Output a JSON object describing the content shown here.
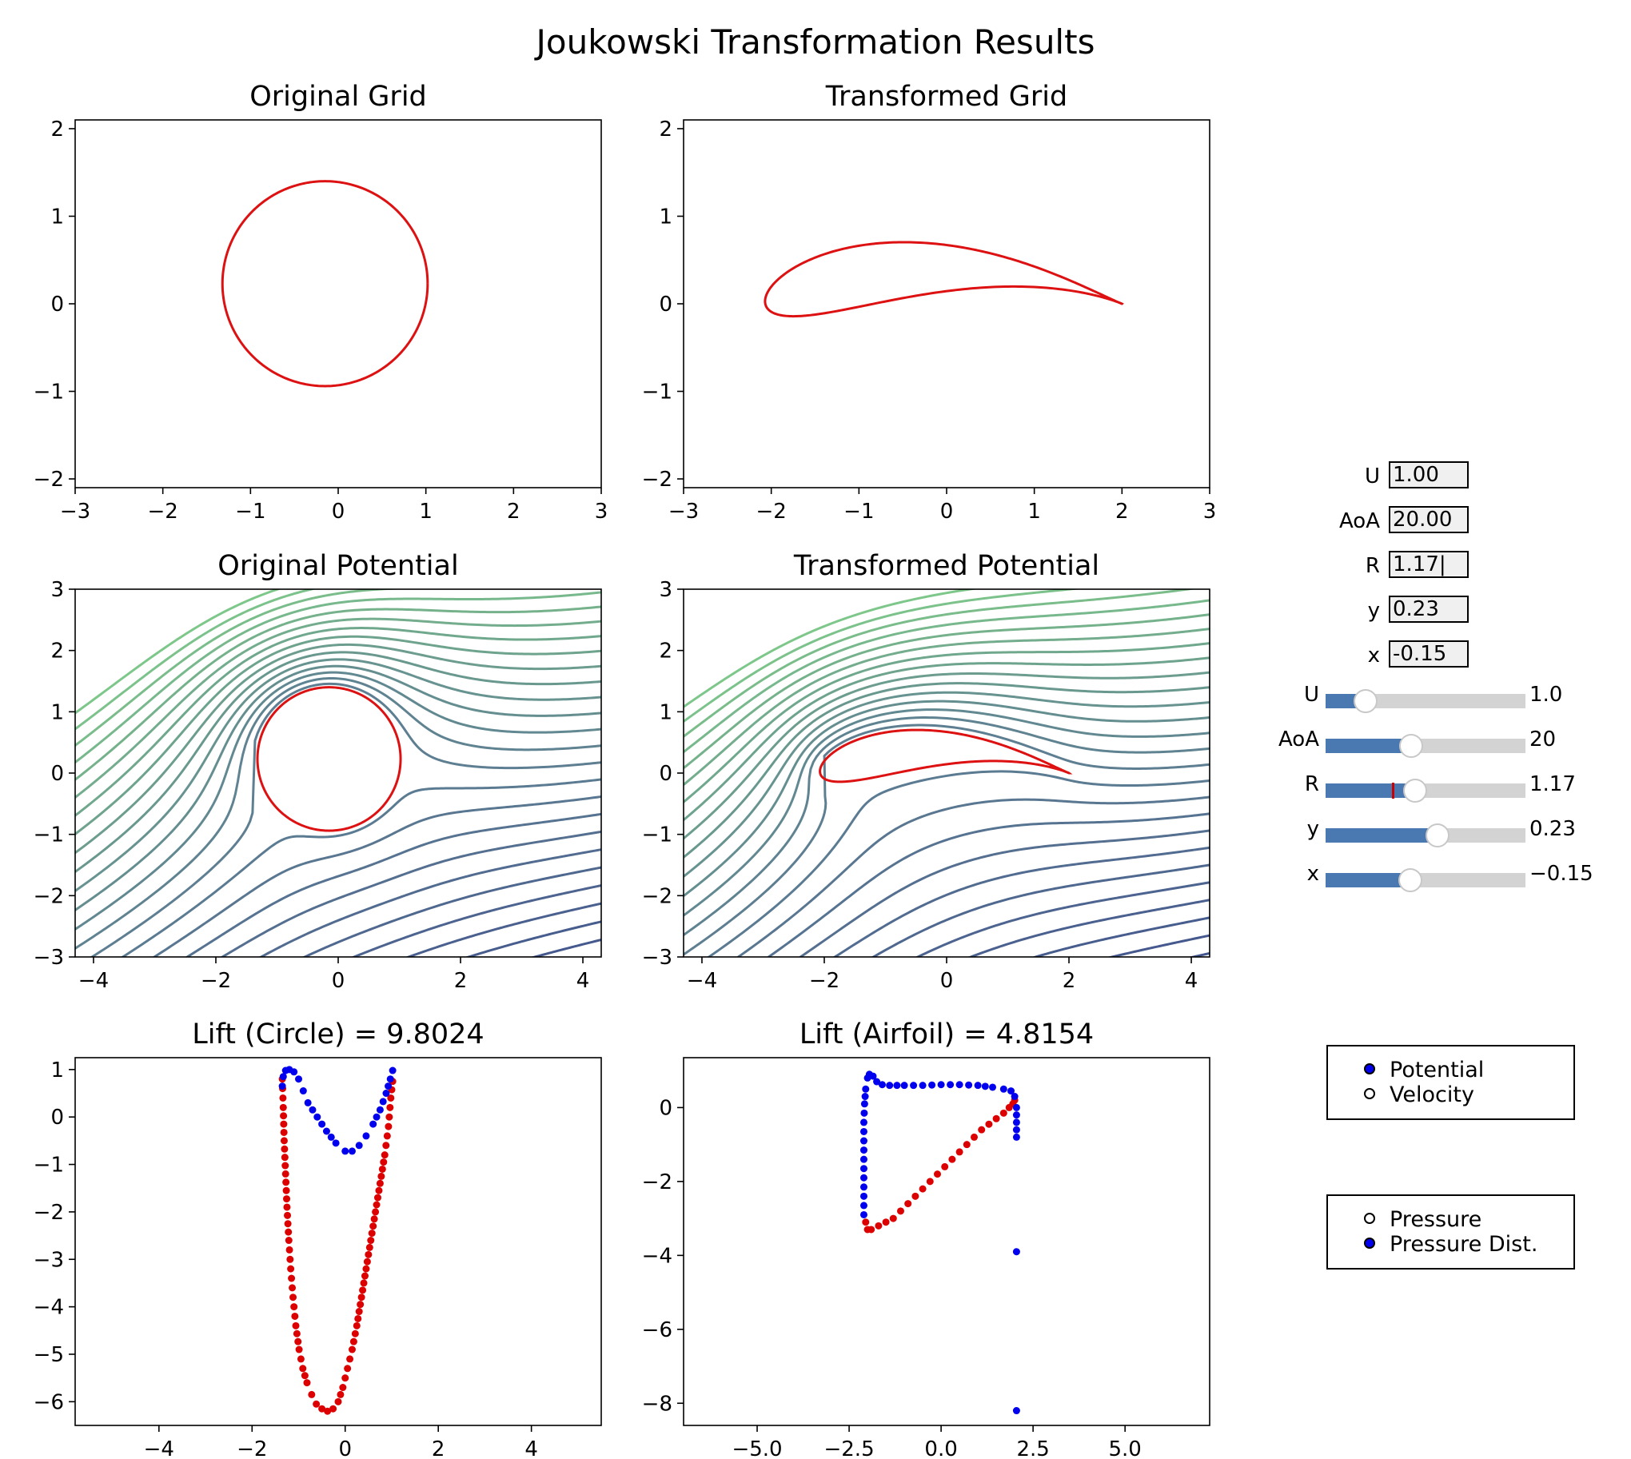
{
  "suptitle": "Joukowski Transformation Results",
  "chart_data": [
    {
      "type": "line",
      "title": "Original Grid",
      "curve": "circle",
      "center": [
        -0.15,
        0.23
      ],
      "radius": 1.17,
      "color": "#dd1111",
      "xlim": [
        -3,
        3
      ],
      "ylim": [
        -2.1,
        2.1
      ],
      "xticks": [
        -3,
        -2,
        -1,
        0,
        1,
        2,
        3
      ],
      "yticks": [
        -2,
        -1,
        0,
        1,
        2
      ],
      "xlabel": "",
      "ylabel": ""
    },
    {
      "type": "line",
      "title": "Transformed Grid",
      "curve": "joukowski airfoil",
      "center": [
        -0.15,
        0.23
      ],
      "radius": 1.17,
      "color": "#dd1111",
      "xlim": [
        -3,
        3
      ],
      "ylim": [
        -2.1,
        2.1
      ],
      "xticks": [
        -3,
        -2,
        -1,
        0,
        1,
        2,
        3
      ],
      "yticks": [
        -2,
        -1,
        0,
        1,
        2
      ],
      "xlabel": "",
      "ylabel": ""
    },
    {
      "type": "line",
      "title": "Original Potential",
      "curve": "streamlines around circle",
      "center": [
        -0.15,
        0.23
      ],
      "radius": 1.17,
      "color": "#dd1111",
      "colormap": [
        "#3b4a8c",
        "#5e7f92",
        "#7fc98a"
      ],
      "xlim": [
        -4.3,
        4.3
      ],
      "ylim": [
        -3,
        3
      ],
      "xticks": [
        -4,
        -2,
        0,
        2,
        4
      ],
      "yticks": [
        -3,
        -2,
        -1,
        0,
        1,
        2,
        3
      ],
      "xlabel": "",
      "ylabel": ""
    },
    {
      "type": "line",
      "title": "Transformed Potential",
      "curve": "streamlines around airfoil",
      "center": [
        -0.15,
        0.23
      ],
      "radius": 1.17,
      "color": "#dd1111",
      "colormap": [
        "#3b4a8c",
        "#5e7f92",
        "#7fc98a"
      ],
      "xlim": [
        -4.3,
        4.3
      ],
      "ylim": [
        -3,
        3
      ],
      "xticks": [
        -4,
        -2,
        0,
        2,
        4
      ],
      "yticks": [
        -3,
        -2,
        -1,
        0,
        1,
        2,
        3
      ],
      "xlabel": "",
      "ylabel": ""
    },
    {
      "type": "scatter",
      "title": "Lift (Circle) = 9.8024",
      "series": [
        {
          "color": "#dd0000",
          "points": [
            [
              -1.35,
              0.8
            ],
            [
              -1.33,
              0.2
            ],
            [
              -1.31,
              -0.5
            ],
            [
              -1.28,
              -1.2
            ],
            [
              -1.25,
              -1.9
            ],
            [
              -1.21,
              -2.6
            ],
            [
              -1.17,
              -3.2
            ],
            [
              -1.12,
              -3.8
            ],
            [
              -1.06,
              -4.4
            ],
            [
              -0.99,
              -4.9
            ],
            [
              -0.91,
              -5.3
            ],
            [
              -0.82,
              -5.6
            ],
            [
              -0.72,
              -5.85
            ],
            [
              -0.62,
              -6.05
            ],
            [
              -0.5,
              -6.15
            ],
            [
              -0.38,
              -6.2
            ],
            [
              -0.26,
              -6.15
            ],
            [
              -0.15,
              -6.0
            ],
            [
              -0.05,
              -5.7
            ],
            [
              0.05,
              -5.3
            ],
            [
              0.15,
              -4.9
            ],
            [
              0.25,
              -4.4
            ],
            [
              0.35,
              -3.8
            ],
            [
              0.45,
              -3.2
            ],
            [
              0.55,
              -2.6
            ],
            [
              0.65,
              -2.0
            ],
            [
              0.75,
              -1.4
            ],
            [
              0.85,
              -0.8
            ],
            [
              0.93,
              -0.2
            ],
            [
              0.98,
              0.4
            ],
            [
              1.02,
              0.75
            ]
          ]
        },
        {
          "color": "#0000ee",
          "points": [
            [
              -1.35,
              0.65
            ],
            [
              -1.33,
              0.85
            ],
            [
              -1.28,
              0.98
            ],
            [
              -1.2,
              1.0
            ],
            [
              -1.1,
              0.95
            ],
            [
              -1.0,
              0.8
            ],
            [
              -0.9,
              0.55
            ],
            [
              -0.8,
              0.3
            ],
            [
              -0.6,
              0.0
            ],
            [
              -0.4,
              -0.3
            ],
            [
              -0.2,
              -0.55
            ],
            [
              0.0,
              -0.72
            ],
            [
              0.15,
              -0.72
            ],
            [
              0.3,
              -0.6
            ],
            [
              0.45,
              -0.4
            ],
            [
              0.6,
              -0.15
            ],
            [
              0.75,
              0.15
            ],
            [
              0.88,
              0.5
            ],
            [
              0.97,
              0.8
            ],
            [
              1.02,
              0.98
            ]
          ]
        }
      ],
      "xlim": [
        -5.8,
        5.5
      ],
      "ylim": [
        -6.5,
        1.25
      ],
      "xticks": [
        -4,
        -2,
        0,
        2,
        4
      ],
      "yticks": [
        -6,
        -5,
        -4,
        -3,
        -2,
        -1,
        0,
        1
      ],
      "xlabel": "",
      "ylabel": ""
    },
    {
      "type": "scatter",
      "title": "Lift (Airfoil) = 4.8154",
      "series": [
        {
          "color": "#dd0000",
          "points": [
            [
              -2.05,
              -3.1
            ],
            [
              -2.0,
              -3.3
            ],
            [
              -1.9,
              -3.3
            ],
            [
              -1.7,
              -3.2
            ],
            [
              -1.5,
              -3.1
            ],
            [
              -1.3,
              -3.0
            ],
            [
              -1.1,
              -2.8
            ],
            [
              -0.9,
              -2.6
            ],
            [
              -0.7,
              -2.4
            ],
            [
              -0.5,
              -2.2
            ],
            [
              -0.3,
              -2.0
            ],
            [
              -0.1,
              -1.8
            ],
            [
              0.1,
              -1.6
            ],
            [
              0.3,
              -1.4
            ],
            [
              0.5,
              -1.2
            ],
            [
              0.7,
              -1.0
            ],
            [
              0.9,
              -0.8
            ],
            [
              1.1,
              -0.6
            ],
            [
              1.3,
              -0.45
            ],
            [
              1.5,
              -0.3
            ],
            [
              1.7,
              -0.15
            ],
            [
              1.85,
              0.0
            ],
            [
              1.95,
              0.1
            ],
            [
              2.0,
              0.2
            ]
          ]
        },
        {
          "color": "#0000ee",
          "points": [
            [
              -2.1,
              -2.9
            ],
            [
              -2.1,
              -2.4
            ],
            [
              -2.1,
              -1.9
            ],
            [
              -2.1,
              -1.4
            ],
            [
              -2.1,
              -0.9
            ],
            [
              -2.1,
              -0.4
            ],
            [
              -2.08,
              0.1
            ],
            [
              -2.05,
              0.5
            ],
            [
              -2.0,
              0.8
            ],
            [
              -1.95,
              0.9
            ],
            [
              -1.85,
              0.85
            ],
            [
              -1.75,
              0.7
            ],
            [
              -1.6,
              0.62
            ],
            [
              -1.4,
              0.6
            ],
            [
              -1.0,
              0.6
            ],
            [
              -0.5,
              0.6
            ],
            [
              0.0,
              0.62
            ],
            [
              0.5,
              0.62
            ],
            [
              1.0,
              0.6
            ],
            [
              1.4,
              0.55
            ],
            [
              1.7,
              0.5
            ],
            [
              1.9,
              0.45
            ],
            [
              2.0,
              0.3
            ],
            [
              2.05,
              0.0
            ],
            [
              2.05,
              -0.8
            ],
            [
              2.05,
              -3.9
            ],
            [
              2.05,
              -8.2
            ]
          ]
        }
      ],
      "xlim": [
        -7.0,
        7.3
      ],
      "ylim": [
        -8.6,
        1.35
      ],
      "xticks": [
        -5.0,
        -2.5,
        0.0,
        2.5,
        5.0
      ],
      "yticks": [
        -8,
        -6,
        -4,
        -2,
        0
      ],
      "xlabel": "",
      "ylabel": ""
    }
  ],
  "textboxes": [
    {
      "label": "U",
      "value": "1.00"
    },
    {
      "label": "AoA",
      "value": "20.00"
    },
    {
      "label": "R",
      "value": "1.17|"
    },
    {
      "label": "y",
      "value": "0.23"
    },
    {
      "label": "x",
      "value": "-0.15"
    }
  ],
  "sliders": [
    {
      "label": "U",
      "value": 1.0,
      "min": 0.0,
      "max": 5.0,
      "display": "1.0",
      "mark": null
    },
    {
      "label": "AoA",
      "value": 20,
      "min": -25,
      "max": 80,
      "display": "20",
      "mark": null
    },
    {
      "label": "R",
      "value": 1.17,
      "min": 0.5,
      "max": 2.0,
      "display": "1.17",
      "mark": 1.0
    },
    {
      "label": "y",
      "value": 0.23,
      "min": -0.5,
      "max": 0.8,
      "display": "0.23",
      "mark": null
    },
    {
      "label": "x",
      "value": -0.15,
      "min": -1.0,
      "max": 1.0,
      "display": "−0.15",
      "mark": null
    }
  ],
  "radio_groups": [
    {
      "options": [
        {
          "label": "Potential",
          "selected": true
        },
        {
          "label": "Velocity",
          "selected": false
        }
      ],
      "active_color": "#0000ee"
    },
    {
      "options": [
        {
          "label": "Pressure",
          "selected": false
        },
        {
          "label": "Pressure Dist.",
          "selected": true
        }
      ],
      "active_color": "#0000ee"
    }
  ]
}
